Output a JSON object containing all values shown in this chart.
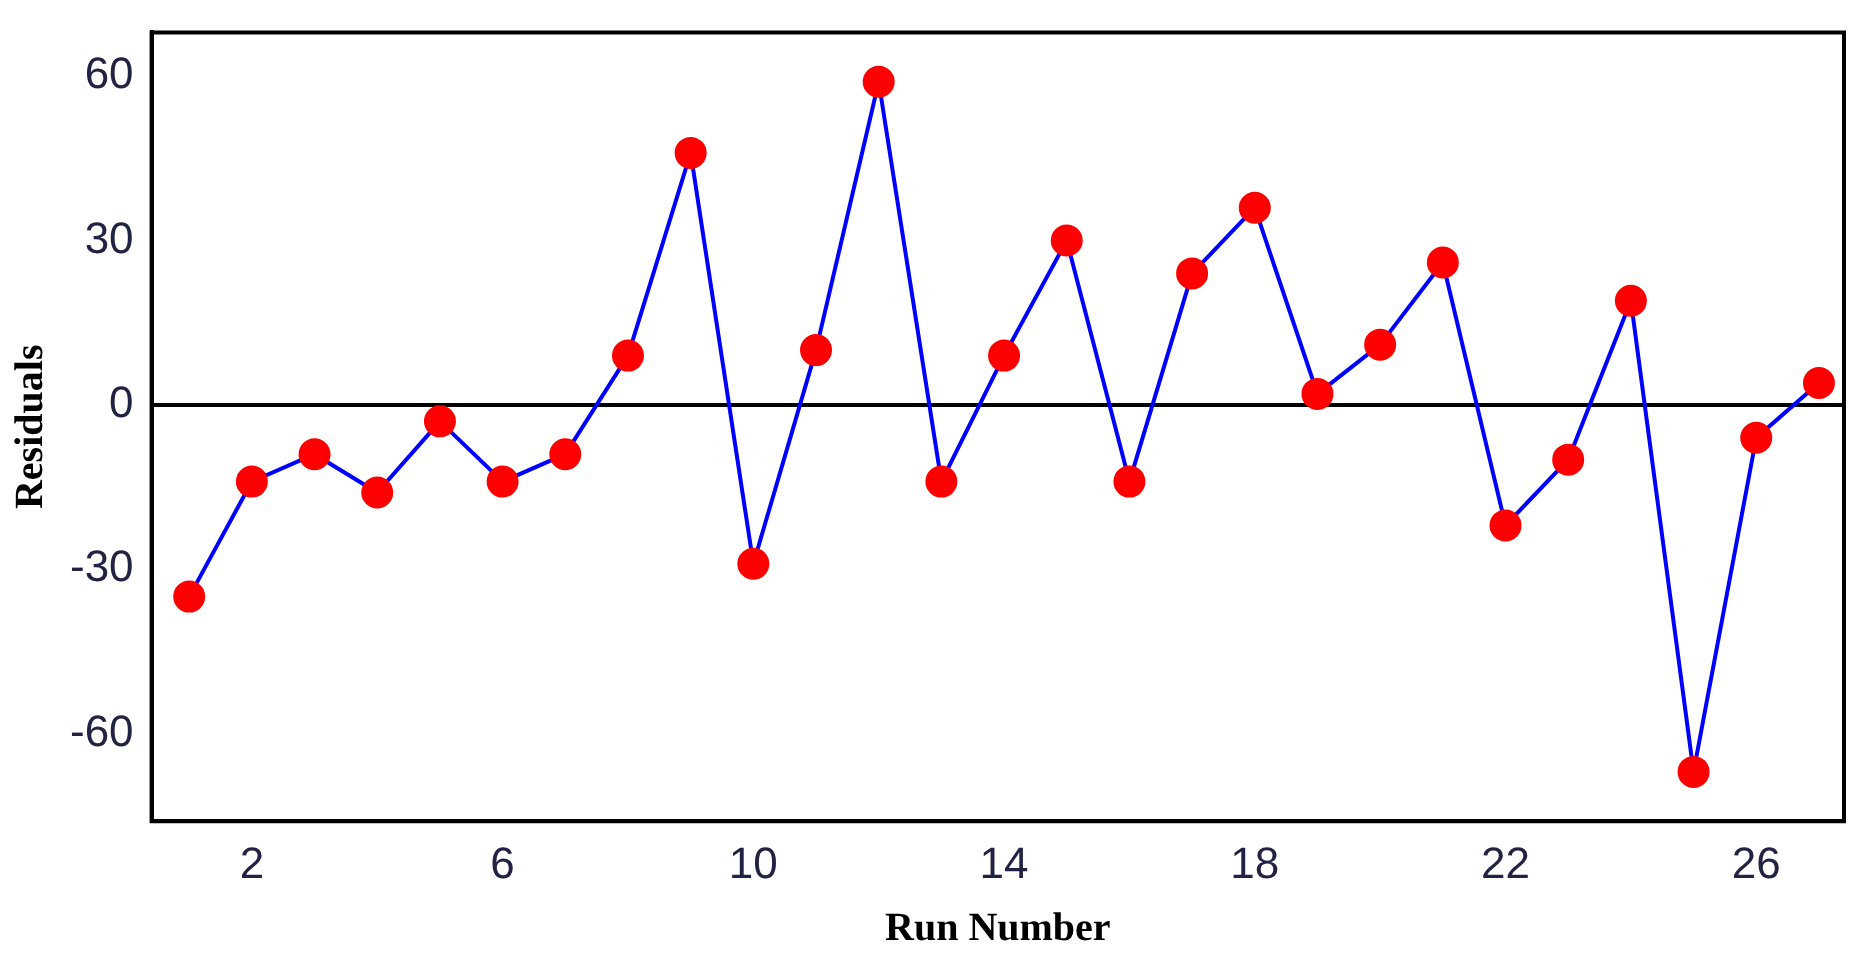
{
  "chart_data": {
    "type": "line",
    "xlabel": "Run Number",
    "ylabel": "Residuals",
    "x": [
      1,
      2,
      3,
      4,
      5,
      6,
      7,
      8,
      9,
      10,
      11,
      12,
      13,
      14,
      15,
      16,
      17,
      18,
      19,
      20,
      21,
      22,
      23,
      24,
      25,
      26,
      27
    ],
    "series": [
      {
        "color": "#0000ff",
        "colors": [
          "#ff0000",
          "#ff0000",
          "#ff0000",
          "#ff0000",
          "#ff0000",
          "#ff0000",
          "#ff0000",
          "#ff0000",
          "#ff0000",
          "#ff0000",
          "#ff0000",
          "#ff0000",
          "#ff0000",
          "#ff0000",
          "#ff0000",
          "#ff0000",
          "#ff0000",
          "#ff0000",
          "#ff0000",
          "#ff0000",
          "#ff0000",
          "#ff0000",
          "#ff0000",
          "#ff0000",
          "#ff0000",
          "#ff0000",
          "#ff0000"
        ],
        "values": [
          -35,
          -14,
          -9,
          -16,
          -3,
          -14,
          -9,
          9,
          46,
          -29,
          10,
          59,
          -14,
          9,
          30,
          -14,
          24,
          36,
          2,
          11,
          26,
          -22,
          -10,
          19,
          -67,
          -6,
          4
        ]
      }
    ],
    "xlim": [
      0.4,
      27.4
    ],
    "xticks": [
      2,
      6,
      10,
      14,
      18,
      22,
      26
    ],
    "ylim": [
      -76,
      68
    ],
    "yticks": [
      -60,
      -30,
      0,
      30,
      60
    ],
    "ref_lines": [
      {
        "axis": "y",
        "value": 0,
        "color": "#000000"
      }
    ],
    "grid": false,
    "legend": false,
    "marker": "circle",
    "line_style": "solid"
  }
}
